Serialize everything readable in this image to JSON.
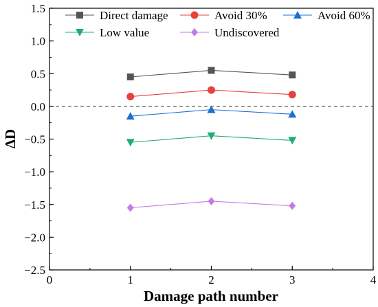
{
  "chart_data": {
    "type": "line",
    "xlabel": "Damage path number",
    "ylabel": "ΔD",
    "xlim": [
      0,
      4
    ],
    "ylim": [
      -2.5,
      1.5
    ],
    "x_ticks": [
      "0",
      "1",
      "2",
      "3",
      "4"
    ],
    "y_ticks": [
      "1.5",
      "1.0",
      "0.5",
      "0.0",
      "−0.5",
      "−1.0",
      "−1.5",
      "−2.0",
      "−2.5"
    ],
    "x": [
      1,
      2,
      3
    ],
    "reference_line": {
      "y": 0,
      "style": "dashed"
    },
    "grid": false,
    "legend_position": "top",
    "series": [
      {
        "name": "Direct damage",
        "marker": "square",
        "color": "#555555",
        "line_color": "#555555",
        "values": [
          0.45,
          0.55,
          0.48
        ]
      },
      {
        "name": "Avoid 30%",
        "marker": "circle",
        "color": "#e8403a",
        "line_color": "#e8403a",
        "values": [
          0.15,
          0.25,
          0.18
        ]
      },
      {
        "name": "Avoid 60%",
        "marker": "triangle-up",
        "color": "#1f6fd1",
        "line_color": "#1f6fd1",
        "values": [
          -0.15,
          -0.05,
          -0.12
        ]
      },
      {
        "name": "Low value",
        "marker": "triangle-down",
        "color": "#1eae72",
        "line_color": "#1eae72",
        "values": [
          -0.55,
          -0.45,
          -0.52
        ]
      },
      {
        "name": "Undiscovered",
        "marker": "diamond",
        "color": "#c57be6",
        "line_color": "#c57be6",
        "values": [
          -1.55,
          -1.45,
          -1.52
        ]
      }
    ]
  }
}
